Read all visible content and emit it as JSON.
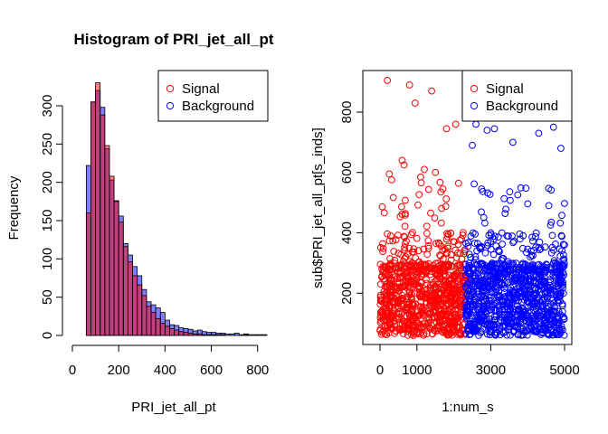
{
  "chart_data": [
    {
      "type": "bar",
      "title": "Histogram of PRI_jet_all_pt",
      "xlabel": "PRI_jet_all_pt",
      "ylabel": "Frequency",
      "xlim": [
        0,
        840
      ],
      "ylim": [
        0,
        330
      ],
      "xticks": [
        0,
        200,
        400,
        600,
        800
      ],
      "yticks": [
        0,
        50,
        100,
        150,
        200,
        250,
        300
      ],
      "bin_width": 20,
      "bin_starts": [
        60,
        80,
        100,
        120,
        140,
        160,
        180,
        200,
        220,
        240,
        260,
        280,
        300,
        320,
        340,
        360,
        380,
        400,
        420,
        440,
        460,
        480,
        500,
        520,
        540,
        560,
        580,
        600,
        620,
        640,
        660,
        680,
        700,
        720,
        740,
        760,
        780,
        800,
        820
      ],
      "series": [
        {
          "name": "Signal",
          "color": "#ff0000",
          "values": [
            160,
            305,
            330,
            288,
            248,
            208,
            175,
            148,
            116,
            96,
            78,
            66,
            52,
            38,
            30,
            22,
            16,
            12,
            9,
            7,
            5,
            4,
            3,
            2,
            2,
            1,
            1,
            1,
            1,
            1,
            0,
            0,
            0,
            0,
            1,
            0,
            0,
            0,
            0
          ]
        },
        {
          "name": "Background",
          "color": "#0000ff",
          "values": [
            222,
            305,
            320,
            298,
            244,
            203,
            176,
            156,
            120,
            105,
            90,
            78,
            60,
            44,
            40,
            36,
            30,
            20,
            14,
            13,
            10,
            9,
            8,
            6,
            7,
            5,
            4,
            4,
            3,
            3,
            2,
            2,
            3,
            1,
            2,
            1,
            1,
            1,
            1
          ]
        }
      ],
      "legend": {
        "position": "top-right",
        "entries": [
          "Signal",
          "Background"
        ]
      }
    },
    {
      "type": "scatter",
      "title": "",
      "xlabel": "1:num_s",
      "ylabel": "sub$PRI_jet_all_pt[s_inds]",
      "xlim": [
        0,
        5000
      ],
      "ylim": [
        60,
        880
      ],
      "xticks": [
        0,
        1000,
        3000,
        5000
      ],
      "yticks": [
        200,
        400,
        600,
        800
      ],
      "series": [
        {
          "name": "Signal",
          "color": "#ff0000",
          "x_range": [
            1,
            2320
          ],
          "count": 2320,
          "outliers": [
            [
              200,
              905
            ],
            [
              800,
              890
            ],
            [
              1400,
              870
            ],
            [
              950,
              830
            ],
            [
              250,
              595
            ],
            [
              2050,
              760
            ],
            [
              1800,
              745
            ],
            [
              600,
              640
            ],
            [
              650,
              625
            ],
            [
              1200,
              610
            ],
            [
              1500,
              600
            ],
            [
              1100,
              585
            ]
          ]
        },
        {
          "name": "Background",
          "color": "#0000ff",
          "x_range": [
            2321,
            5000
          ],
          "count": 2680,
          "outliers": [
            [
              4800,
              840
            ],
            [
              3800,
              800
            ],
            [
              4050,
              790
            ],
            [
              3300,
              780
            ],
            [
              2600,
              760
            ],
            [
              4700,
              750
            ],
            [
              3100,
              745
            ],
            [
              2900,
              740
            ],
            [
              4300,
              730
            ],
            [
              3600,
              700
            ],
            [
              2500,
              690
            ],
            [
              4900,
              680
            ]
          ]
        }
      ],
      "legend": {
        "position": "top-right",
        "entries": [
          "Signal",
          "Background"
        ]
      }
    }
  ]
}
